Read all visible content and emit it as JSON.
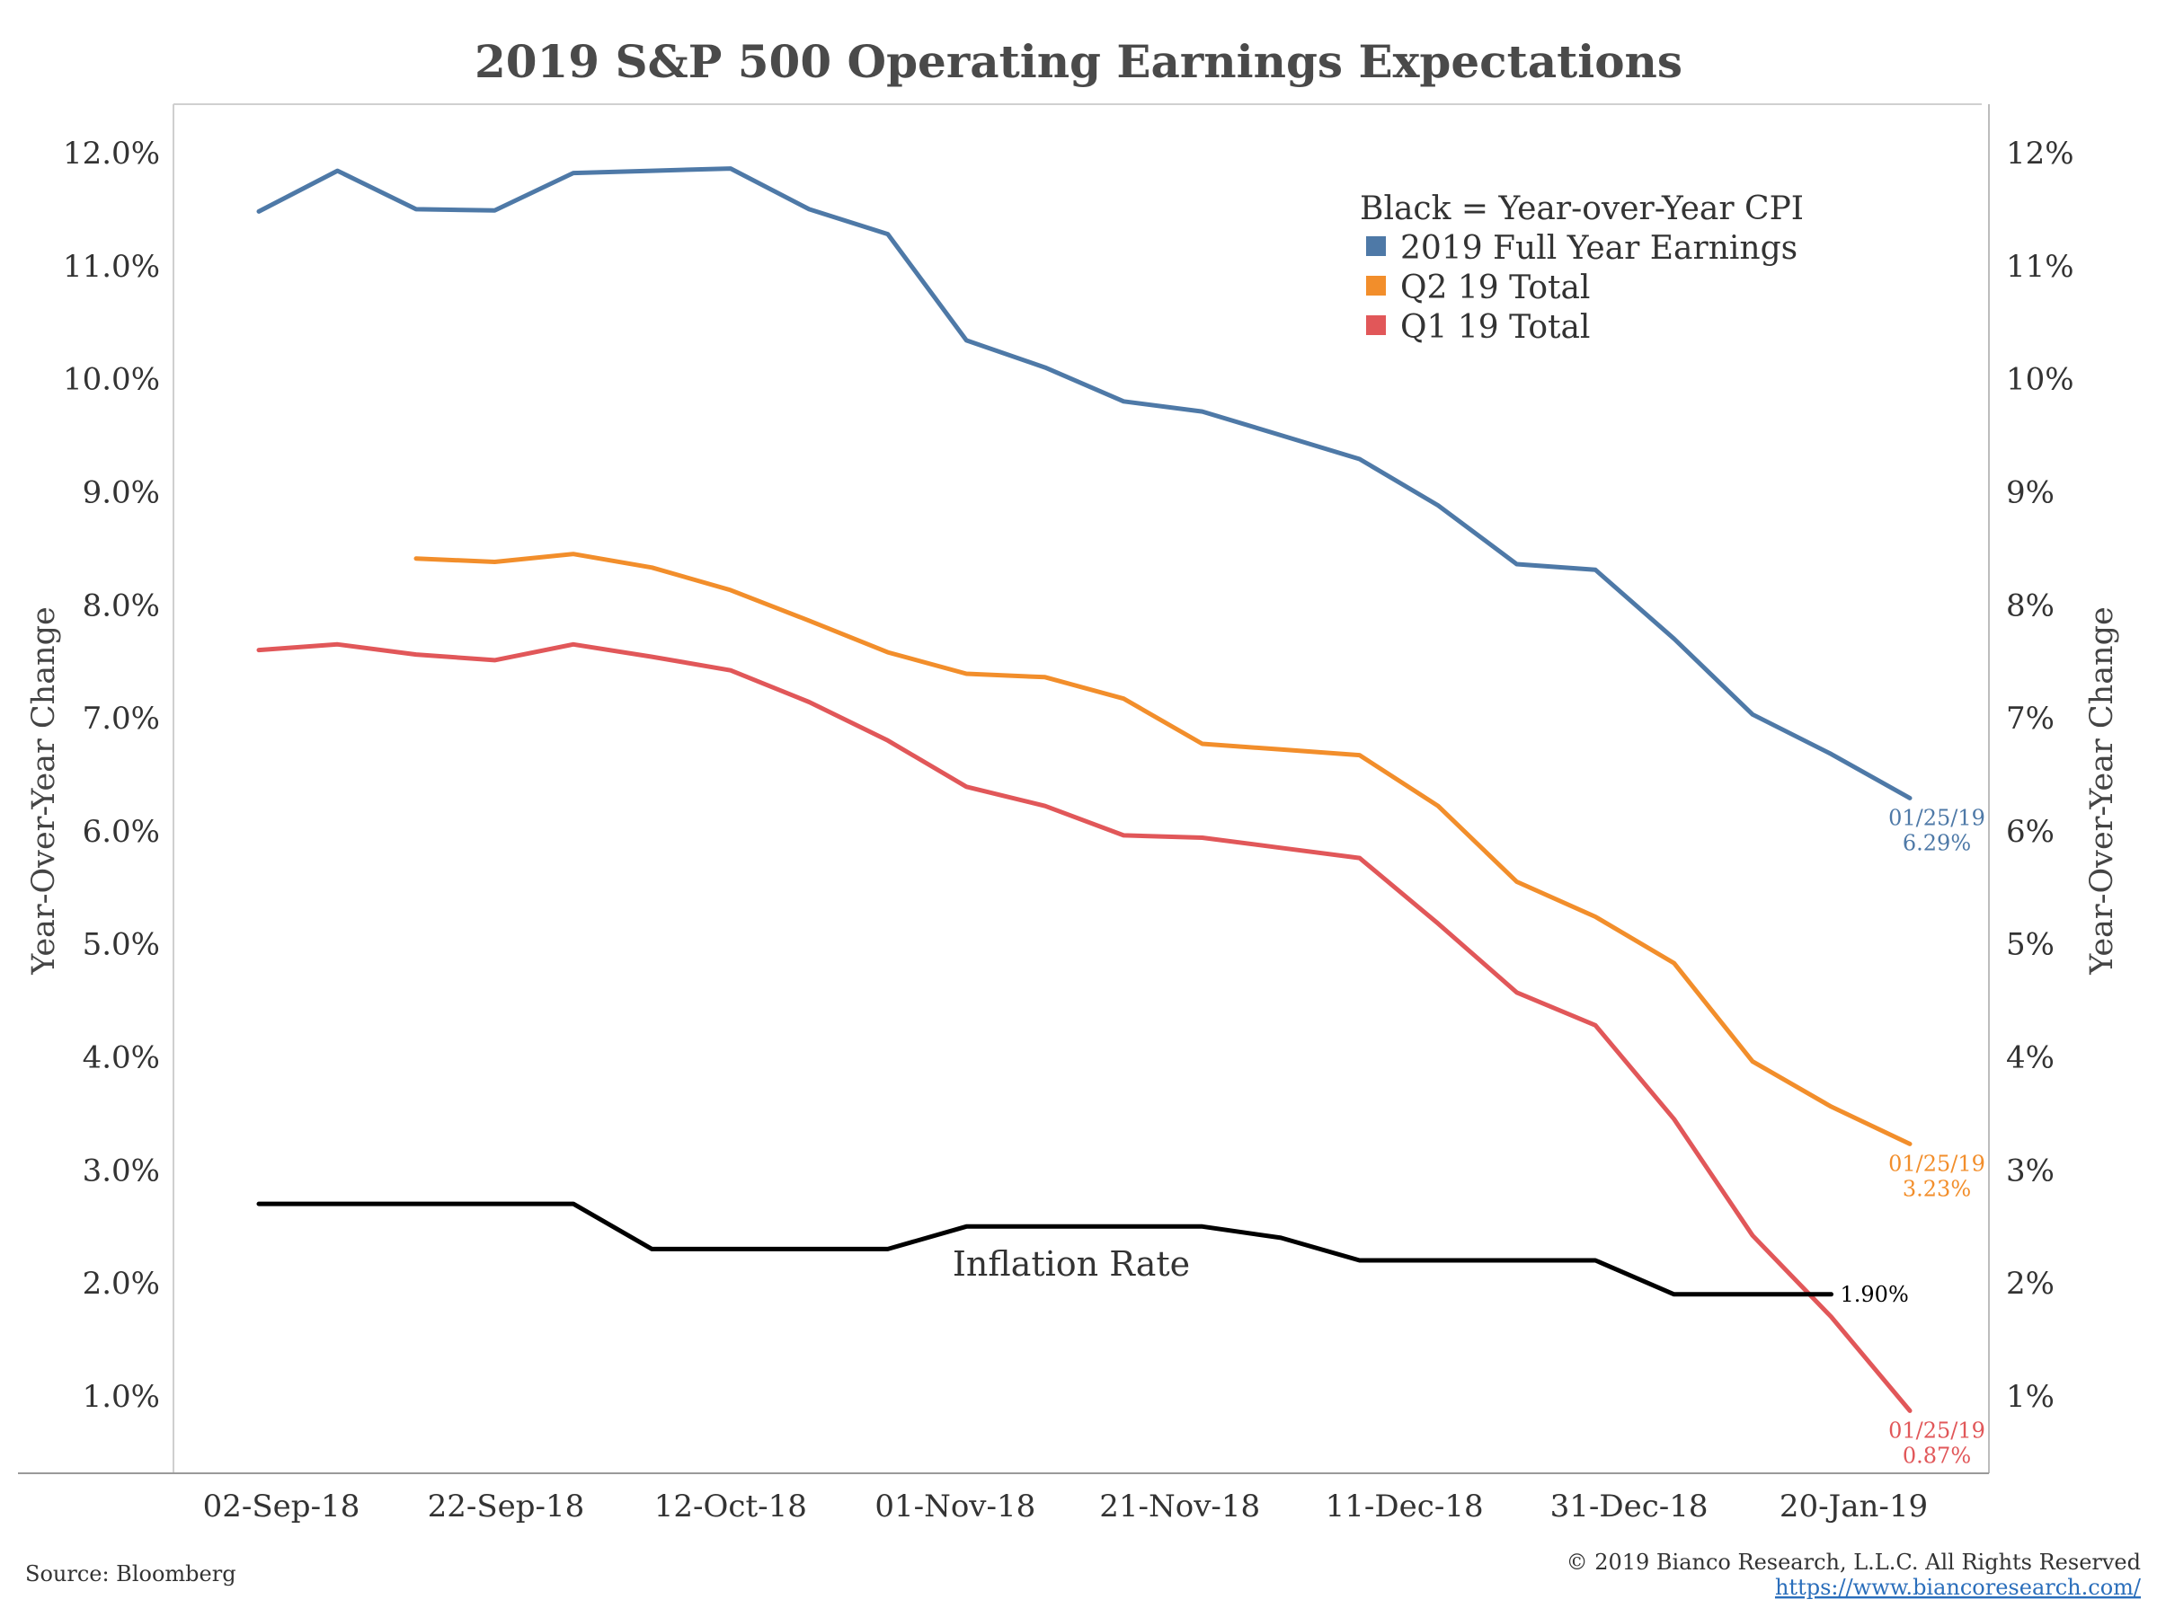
{
  "chart_data": {
    "type": "line",
    "title": "2019 S&P 500 Operating Earnings Expectations",
    "ylabel_left": "Year-Over-Year Change",
    "ylabel_right": "Year-Over-Year Change",
    "ylim": [
      0.3,
      12.5
    ],
    "y_ticks_left": [
      "12.0%",
      "11.0%",
      "10.0%",
      "9.0%",
      "8.0%",
      "7.0%",
      "6.0%",
      "5.0%",
      "4.0%",
      "3.0%",
      "2.0%",
      "1.0%"
    ],
    "y_ticks_right": [
      "12%",
      "11%",
      "10%",
      "9%",
      "8%",
      "7%",
      "6%",
      "5%",
      "4%",
      "3%",
      "2%",
      "1%"
    ],
    "x_tick_labels": [
      "02-Sep-18",
      "22-Sep-18",
      "12-Oct-18",
      "01-Nov-18",
      "21-Nov-18",
      "11-Dec-18",
      "31-Dec-18",
      "20-Jan-19"
    ],
    "x_dates": [
      "2018-08-31",
      "2018-09-07",
      "2018-09-14",
      "2018-09-21",
      "2018-09-28",
      "2018-10-05",
      "2018-10-12",
      "2018-10-19",
      "2018-10-26",
      "2018-11-02",
      "2018-11-09",
      "2018-11-16",
      "2018-11-23",
      "2018-11-30",
      "2018-12-07",
      "2018-12-14",
      "2018-12-21",
      "2018-12-28",
      "2019-01-04",
      "2019-01-11",
      "2019-01-18",
      "2019-01-25"
    ],
    "series": [
      {
        "name": "2019 Full Year Earnings",
        "color": "#4e79a7",
        "values": [
          11.48,
          11.84,
          11.5,
          11.49,
          11.82,
          11.84,
          11.86,
          11.5,
          11.28,
          10.34,
          10.1,
          9.8,
          9.71,
          9.5,
          9.29,
          8.88,
          8.36,
          8.31,
          7.7,
          7.03,
          6.68,
          6.29
        ],
        "end_label_date": "01/25/19",
        "end_label_value": "6.29%"
      },
      {
        "name": "Q2 19 Total",
        "color": "#f28e2b",
        "values": [
          null,
          null,
          8.41,
          8.38,
          8.45,
          8.33,
          8.13,
          7.86,
          7.58,
          7.39,
          7.36,
          7.17,
          6.77,
          6.72,
          6.67,
          6.22,
          5.55,
          5.24,
          4.83,
          3.96,
          3.56,
          3.23
        ],
        "end_label_date": "01/25/19",
        "end_label_value": "3.23%"
      },
      {
        "name": "Q1 19 Total",
        "color": "#e15759",
        "values": [
          7.6,
          7.65,
          7.56,
          7.51,
          7.65,
          7.54,
          7.42,
          7.14,
          6.8,
          6.39,
          6.22,
          5.96,
          5.94,
          5.85,
          5.76,
          5.18,
          4.57,
          4.28,
          3.45,
          2.42,
          1.7,
          0.87
        ],
        "end_label_date": "01/25/19",
        "end_label_value": "0.87%"
      },
      {
        "name": "Inflation Rate",
        "color": "#000000",
        "values": [
          2.7,
          2.7,
          2.7,
          2.7,
          2.7,
          2.3,
          2.3,
          2.3,
          2.3,
          2.5,
          2.5,
          2.5,
          2.5,
          2.4,
          2.2,
          2.2,
          2.2,
          2.2,
          1.9,
          1.9,
          1.9,
          null
        ],
        "end_label_value": "1.90%"
      }
    ],
    "legend": {
      "heading": "Black = Year-over-Year CPI",
      "items": [
        "2019 Full Year Earnings",
        "Q2 19 Total",
        "Q1 19 Total"
      ],
      "colors": [
        "#4e79a7",
        "#f28e2b",
        "#e15759"
      ],
      "position": "top-right"
    },
    "annotation": "Inflation Rate",
    "grid": false
  },
  "footer": {
    "source": "Source: Bloomberg",
    "copyright": "© 2019 Bianco Research, L.L.C. All Rights Reserved",
    "url": "https://www.biancoresearch.com/"
  }
}
